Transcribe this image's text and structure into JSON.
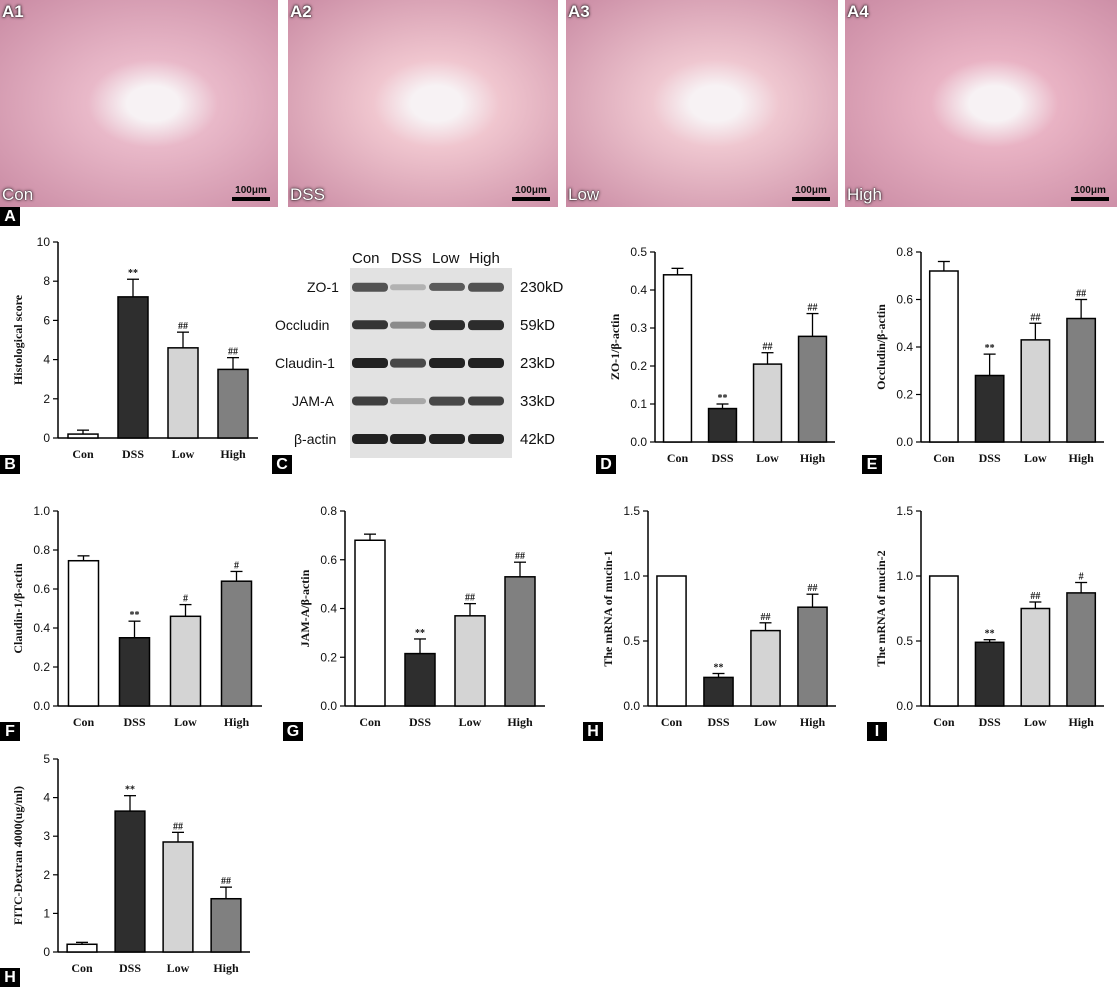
{
  "micrographs": [
    {
      "tag": "A1",
      "condition": "Con",
      "scale": "100μm",
      "bg": "#e9b9c9"
    },
    {
      "tag": "A2",
      "condition": "DSS",
      "scale": "100μm",
      "bg": "#f0c6cf"
    },
    {
      "tag": "A3",
      "condition": "Low",
      "scale": "100μm",
      "bg": "#efc7d0"
    },
    {
      "tag": "A4",
      "condition": "High",
      "scale": "100μm",
      "bg": "#e9b3c4"
    }
  ],
  "panel_labels": [
    "A",
    "B",
    "C",
    "D",
    "E",
    "F",
    "G",
    "H",
    "I",
    "H"
  ],
  "western_blot": {
    "lanes": [
      "Con",
      "DSS",
      "Low",
      "High"
    ],
    "rows": [
      {
        "protein": "ZO-1",
        "kd": "230kD",
        "intensity": [
          0.75,
          0.25,
          0.7,
          0.75
        ]
      },
      {
        "protein": "Occludin",
        "kd": "59kD",
        "intensity": [
          0.9,
          0.45,
          0.95,
          0.95
        ]
      },
      {
        "protein": "Claudin-1",
        "kd": "23kD",
        "intensity": [
          1,
          0.8,
          1,
          1
        ]
      },
      {
        "protein": "JAM-A",
        "kd": "33kD",
        "intensity": [
          0.85,
          0.3,
          0.8,
          0.85
        ]
      },
      {
        "protein": "β-actin",
        "kd": "42kD",
        "intensity": [
          1,
          1,
          1,
          1
        ]
      }
    ]
  },
  "chart_data": [
    {
      "id": "B",
      "type": "bar",
      "categories": [
        "Con",
        "DSS",
        "Low",
        "High"
      ],
      "values": [
        0.2,
        7.2,
        4.6,
        3.5
      ],
      "errors": [
        0.2,
        0.9,
        0.8,
        0.6
      ],
      "marks": [
        "",
        "**",
        "##",
        "##"
      ],
      "ylabel": "Histological score",
      "ylim": [
        0,
        10
      ],
      "ticks": [
        "0",
        "2",
        "4",
        "6",
        "8",
        "10"
      ]
    },
    {
      "id": "D",
      "type": "bar",
      "categories": [
        "Con",
        "DSS",
        "Low",
        "High"
      ],
      "values": [
        0.44,
        0.088,
        0.205,
        0.278
      ],
      "errors": [
        0.017,
        0.012,
        0.03,
        0.06
      ],
      "marks": [
        "",
        "**",
        "##",
        "##"
      ],
      "ylabel": "ZO-1/β-actin",
      "ylim": [
        0,
        0.5
      ],
      "ticks": [
        "0.0",
        "0.1",
        "0.2",
        "0.3",
        "0.4",
        "0.5"
      ]
    },
    {
      "id": "E",
      "type": "bar",
      "categories": [
        "Con",
        "DSS",
        "Low",
        "High"
      ],
      "values": [
        0.72,
        0.28,
        0.43,
        0.52
      ],
      "errors": [
        0.04,
        0.09,
        0.07,
        0.08
      ],
      "marks": [
        "",
        "**",
        "##",
        "##"
      ],
      "ylabel": "Occludin/β-actin",
      "ylim": [
        0,
        0.8
      ],
      "ticks": [
        "0.0",
        "0.2",
        "0.4",
        "0.6",
        "0.8"
      ]
    },
    {
      "id": "F",
      "type": "bar",
      "categories": [
        "Con",
        "DSS",
        "Low",
        "High"
      ],
      "values": [
        0.745,
        0.35,
        0.46,
        0.64
      ],
      "errors": [
        0.025,
        0.085,
        0.06,
        0.05
      ],
      "marks": [
        "",
        "**",
        "#",
        "#"
      ],
      "ylabel": "Claudin-1/β-actin",
      "ylim": [
        0,
        1.0
      ],
      "ticks": [
        "0.0",
        "0.2",
        "0.4",
        "0.6",
        "0.8",
        "1.0"
      ]
    },
    {
      "id": "G",
      "type": "bar",
      "categories": [
        "Con",
        "DSS",
        "Low",
        "High"
      ],
      "values": [
        0.68,
        0.215,
        0.37,
        0.53
      ],
      "errors": [
        0.025,
        0.06,
        0.05,
        0.06
      ],
      "marks": [
        "",
        "**",
        "##",
        "##"
      ],
      "ylabel": "JAM-A/β-actin",
      "ylim": [
        0,
        0.8
      ],
      "ticks": [
        "0.0",
        "0.2",
        "0.4",
        "0.6",
        "0.8"
      ]
    },
    {
      "id": "H",
      "type": "bar",
      "categories": [
        "Con",
        "DSS",
        "Low",
        "High"
      ],
      "values": [
        1.0,
        0.22,
        0.58,
        0.76
      ],
      "errors": [
        0,
        0.03,
        0.06,
        0.1
      ],
      "marks": [
        "",
        "**",
        "##",
        "##"
      ],
      "ylabel": "The mRNA of mucin-1",
      "ylim": [
        0,
        1.5
      ],
      "ticks": [
        "0.0",
        "0.5",
        "1.0",
        "1.5"
      ]
    },
    {
      "id": "I",
      "type": "bar",
      "categories": [
        "Con",
        "DSS",
        "Low",
        "High"
      ],
      "values": [
        1.0,
        0.49,
        0.75,
        0.87
      ],
      "errors": [
        0,
        0.02,
        0.05,
        0.08
      ],
      "marks": [
        "",
        "**",
        "##",
        "#"
      ],
      "ylabel": "The mRNA of mucin-2",
      "ylim": [
        0,
        1.5
      ],
      "ticks": [
        "0.0",
        "0.5",
        "1.0",
        "1.5"
      ]
    },
    {
      "id": "H2",
      "type": "bar",
      "categories": [
        "Con",
        "DSS",
        "Low",
        "High"
      ],
      "values": [
        0.2,
        3.65,
        2.85,
        1.38
      ],
      "errors": [
        0.05,
        0.4,
        0.25,
        0.3
      ],
      "marks": [
        "",
        "**",
        "##",
        "##"
      ],
      "ylabel": "FITC-Dextran 4000(ug/ml)",
      "ylim": [
        0,
        5
      ],
      "ticks": [
        "0",
        "1",
        "2",
        "3",
        "4",
        "5"
      ]
    }
  ],
  "bar_colors": [
    "#ffffff",
    "#2e2e2e",
    "#d4d4d4",
    "#808080"
  ]
}
